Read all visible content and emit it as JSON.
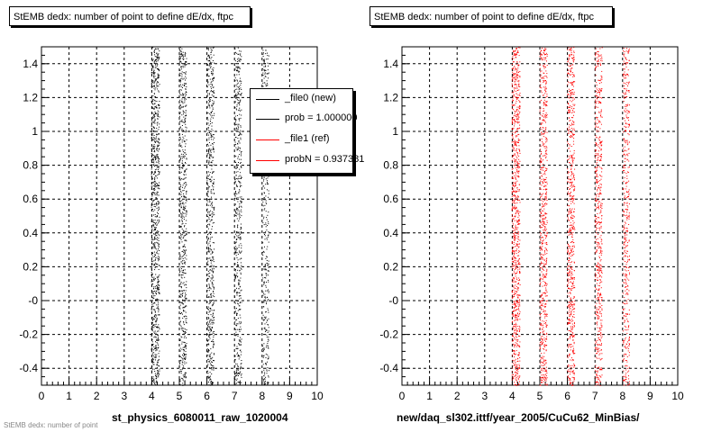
{
  "colors": {
    "file0": "#000000",
    "file1": "#ff0000"
  },
  "panels": [
    {
      "title": "StEMB dedx: number of point to define dE/dx, ftpc",
      "xlabel": "st_physics_6080011_raw_1020004",
      "series_color": "#000000"
    },
    {
      "title": "StEMB dedx: number of point to define dE/dx, ftpc",
      "xlabel": "new/daq_sl302.ittf/year_2005/CuCu62_MinBias/",
      "series_color": "#ff0000"
    }
  ],
  "legend": {
    "entries": [
      {
        "label": "_file0 (new)",
        "color": "#000000"
      },
      {
        "label": "prob = 1.000000",
        "color": "#000000"
      },
      {
        "label": "_file1 (ref)",
        "color": "#ff0000"
      },
      {
        "label": "probN = 0.937381",
        "color": "#ff0000"
      }
    ]
  },
  "footer_small": "StEMB dedx: number of point",
  "chart_data": [
    {
      "type": "scatter",
      "title": "StEMB dedx: number of point to define dE/dx, ftpc",
      "xlabel": "st_physics_6080011_raw_1020004",
      "ylabel": "",
      "xlim": [
        0,
        10
      ],
      "ylim": [
        -0.5,
        1.5
      ],
      "grid": true,
      "x_ticks": [
        "0",
        "1",
        "2",
        "3",
        "4",
        "5",
        "6",
        "7",
        "8",
        "9",
        "10"
      ],
      "y_ticks": [
        "-0.4",
        "-0.2",
        "-0",
        "0.2",
        "0.4",
        "0.6",
        "0.8",
        "1",
        "1.2",
        "1.4"
      ],
      "y_tick_values": [
        -0.4,
        -0.2,
        0,
        0.2,
        0.4,
        0.6,
        0.8,
        1.0,
        1.2,
        1.4
      ],
      "series": [
        {
          "name": "_file0 (new)",
          "color": "#000000",
          "x_bands": [
            4,
            5,
            6,
            7,
            8
          ],
          "band_density": [
            1.0,
            0.7,
            0.7,
            0.6,
            0.4
          ]
        }
      ],
      "legend_position": "top-right"
    },
    {
      "type": "scatter",
      "title": "StEMB dedx: number of point to define dE/dx, ftpc",
      "xlabel": "new/daq_sl302.ittf/year_2005/CuCu62_MinBias/",
      "ylabel": "",
      "xlim": [
        0,
        10
      ],
      "ylim": [
        -0.5,
        1.5
      ],
      "grid": true,
      "x_ticks": [
        "0",
        "1",
        "2",
        "3",
        "4",
        "5",
        "6",
        "7",
        "8",
        "9",
        "10"
      ],
      "y_ticks": [
        "-0.4",
        "-0.2",
        "-0",
        "0.2",
        "0.4",
        "0.6",
        "0.8",
        "1",
        "1.2",
        "1.4"
      ],
      "y_tick_values": [
        -0.4,
        -0.2,
        0,
        0.2,
        0.4,
        0.6,
        0.8,
        1.0,
        1.2,
        1.4
      ],
      "series": [
        {
          "name": "_file1 (ref)",
          "color": "#ff0000",
          "x_bands": [
            4,
            5,
            6,
            7,
            8
          ],
          "band_density": [
            1.0,
            0.75,
            0.75,
            0.65,
            0.5
          ]
        }
      ]
    }
  ]
}
